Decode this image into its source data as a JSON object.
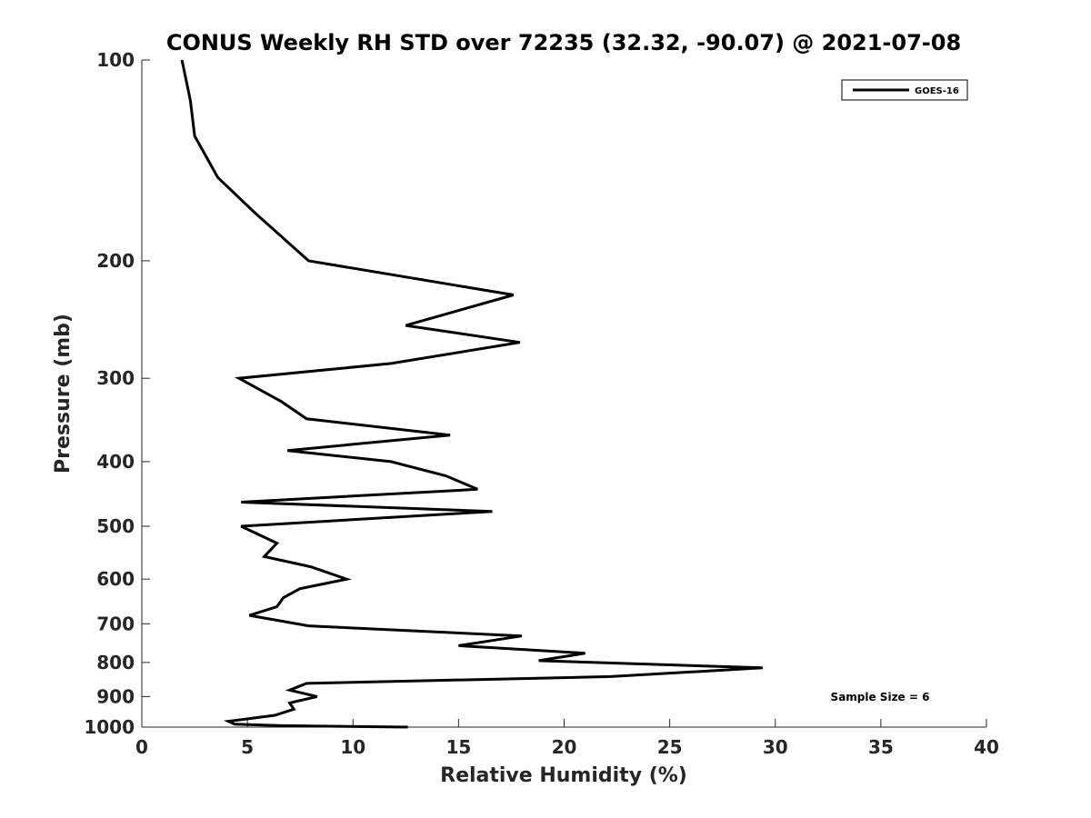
{
  "chart_data": {
    "type": "line",
    "title": "CONUS Weekly RH STD over 72235 (32.32, -90.07) @ 2021-07-08",
    "xlabel": "Relative Humidity (%)",
    "ylabel": "Pressure (mb)",
    "xlim": [
      0,
      40
    ],
    "ylim": [
      100,
      1000
    ],
    "yscale": "log",
    "reverse_y": true,
    "x_ticks": [
      0,
      5,
      10,
      15,
      20,
      25,
      30,
      35,
      40
    ],
    "y_ticks": [
      100,
      200,
      300,
      400,
      500,
      600,
      700,
      800,
      900,
      1000
    ],
    "grid": false,
    "legend_position": "top-right",
    "annotation": "Sample Size = 6",
    "series": [
      {
        "name": "GOES-16",
        "color": "#000000",
        "x": [
          1.9,
          2.3,
          2.5,
          3.6,
          5.4,
          7.9,
          17.6,
          12.5,
          17.9,
          11.8,
          4.6,
          6.6,
          7.8,
          14.6,
          6.9,
          11.8,
          14.4,
          15.9,
          4.7,
          16.6,
          4.7,
          6.4,
          5.8,
          8.0,
          9.7,
          7.5,
          6.7,
          6.4,
          5.1,
          7.9,
          18.0,
          15.0,
          21.0,
          18.8,
          29.4,
          22.2,
          7.8,
          7.0,
          8.3,
          7.0,
          7.2,
          6.3,
          4.1,
          4.4,
          6.6,
          12.6
        ],
        "y": [
          100,
          115,
          130,
          150,
          170,
          200,
          225,
          250,
          265,
          285,
          300,
          325,
          345,
          365,
          385,
          400,
          420,
          440,
          460,
          475,
          500,
          530,
          555,
          575,
          600,
          620,
          640,
          660,
          680,
          705,
          730,
          755,
          775,
          795,
          815,
          840,
          860,
          880,
          900,
          920,
          940,
          960,
          980,
          990,
          995,
          1000
        ]
      }
    ]
  }
}
